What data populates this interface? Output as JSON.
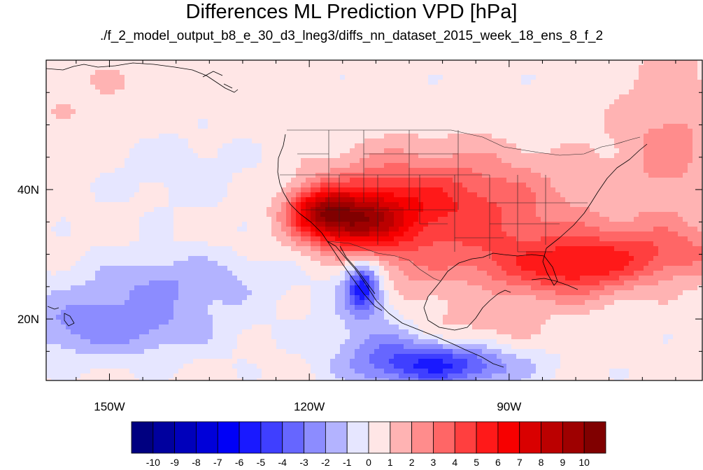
{
  "chart_data": {
    "type": "heatmap",
    "title": "Differences ML Prediction VPD [hPa]",
    "subtitle": "./f_2_model_output_b8_e_30_d3_lneg3/diffs_nn_dataset_2015_week_18_ens_8_f_2",
    "x_ticks": [
      {
        "lon": -150,
        "label": "150W"
      },
      {
        "lon": -120,
        "label": "120W"
      },
      {
        "lon": -90,
        "label": "90W"
      }
    ],
    "y_ticks": [
      {
        "lat": 40,
        "label": "40N"
      },
      {
        "lat": 20,
        "label": "20N"
      }
    ],
    "xlim": [
      -159.5,
      -61
    ],
    "ylim": [
      10.5,
      60
    ],
    "colorbar": {
      "levels": [
        "-10",
        "-9",
        "-8",
        "-7",
        "-6",
        "-5",
        "-4",
        "-3",
        "-2",
        "-1",
        "0",
        "1",
        "2",
        "3",
        "4",
        "5",
        "6",
        "7",
        "8",
        "9",
        "10"
      ],
      "colors": [
        "#000080",
        "#00009e",
        "#0000bb",
        "#0000d9",
        "#0000f7",
        "#1919ff",
        "#3f3fff",
        "#6666ff",
        "#8c8cff",
        "#b3b3ff",
        "#e6e6ff",
        "#ffe6e6",
        "#ffb3b3",
        "#ff8c8c",
        "#ff6666",
        "#ff3f3f",
        "#ff1919",
        "#f70000",
        "#d90000",
        "#bb0000",
        "#9e0000",
        "#800000"
      ]
    },
    "field_anomalies": [
      {
        "lon": -114,
        "lat": 35,
        "value": 6.5,
        "sx": 5,
        "sy": 3
      },
      {
        "lon": -119,
        "lat": 37,
        "value": 4,
        "sx": 3,
        "sy": 2.5
      },
      {
        "lon": -110,
        "lat": 38,
        "value": 3,
        "sx": 7,
        "sy": 5
      },
      {
        "lon": -100,
        "lat": 36,
        "value": 2.5,
        "sx": 9,
        "sy": 5
      },
      {
        "lon": -95,
        "lat": 41,
        "value": 1.5,
        "sx": 10,
        "sy": 5
      },
      {
        "lon": -85,
        "lat": 33,
        "value": 1.5,
        "sx": 10,
        "sy": 6
      },
      {
        "lon": -80,
        "lat": 27,
        "value": 3,
        "sx": 6,
        "sy": 3
      },
      {
        "lon": -70,
        "lat": 30,
        "value": 3,
        "sx": 12,
        "sy": 3
      },
      {
        "lon": -66,
        "lat": 47,
        "value": 2,
        "sx": 6,
        "sy": 10
      },
      {
        "lon": -93,
        "lat": 28,
        "value": 1.5,
        "sx": 6,
        "sy": 3
      },
      {
        "lon": -94,
        "lat": 19,
        "value": 1.5,
        "sx": 6,
        "sy": 4
      },
      {
        "lon": -106,
        "lat": 26,
        "value": 1.5,
        "sx": 4,
        "sy": 5
      },
      {
        "lon": -112,
        "lat": 25,
        "value": -5.5,
        "sx": 1.8,
        "sy": 2.5
      },
      {
        "lon": -100,
        "lat": 13,
        "value": -5.5,
        "sx": 8,
        "sy": 2.5
      },
      {
        "lon": -150,
        "lat": 19,
        "value": -3,
        "sx": 11,
        "sy": 3.5
      },
      {
        "lon": -140,
        "lat": 26,
        "value": -2,
        "sx": 10,
        "sy": 3
      },
      {
        "lon": -110,
        "lat": 19,
        "value": -2,
        "sx": 5,
        "sy": 6
      },
      {
        "lon": -95,
        "lat": 23,
        "value": -0.8,
        "sx": 3,
        "sy": 3
      },
      {
        "lon": -140,
        "lat": 44,
        "value": -0.8,
        "sx": 8,
        "sy": 5
      },
      {
        "lon": -150,
        "lat": 55,
        "value": 0.6,
        "sx": 15,
        "sy": 6
      }
    ],
    "field_base": 0.3
  }
}
